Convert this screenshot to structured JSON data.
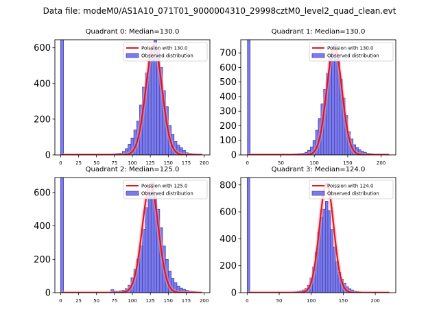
{
  "figure_title": "Data file: modeM0/AS1A10_071T01_9000004310_29998cztM0_level2_quad_clean.evt",
  "colors": {
    "bar_fill": "#7b7bef",
    "bar_edge": "#3a3a9a",
    "curve": "#e8121a",
    "curve_glow": "#f4a6b6"
  },
  "chart_data": [
    {
      "type": "bar",
      "title": "Quadrant 0: Median=130.0",
      "xlabel": "",
      "ylabel": "",
      "xlim": [
        -8,
        208
      ],
      "ylim": [
        0,
        645
      ],
      "xticks": [
        0,
        25,
        50,
        75,
        100,
        125,
        150,
        175,
        200
      ],
      "yticks": [
        0,
        200,
        400,
        600
      ],
      "bin_width": 4.1,
      "zero_bar": 645,
      "bins": [
        [
          70,
          3
        ],
        [
          74,
          5
        ],
        [
          78,
          8
        ],
        [
          82,
          10
        ],
        [
          86,
          20
        ],
        [
          90,
          35
        ],
        [
          94,
          60
        ],
        [
          98,
          95
        ],
        [
          102,
          140
        ],
        [
          106,
          190
        ],
        [
          110,
          280
        ],
        [
          114,
          380
        ],
        [
          118,
          460
        ],
        [
          122,
          550
        ],
        [
          126,
          600
        ],
        [
          130,
          640
        ],
        [
          134,
          590
        ],
        [
          138,
          490
        ],
        [
          142,
          360
        ],
        [
          146,
          270
        ],
        [
          150,
          165
        ],
        [
          154,
          115
        ],
        [
          158,
          75
        ],
        [
          162,
          55
        ],
        [
          166,
          40
        ],
        [
          170,
          25
        ],
        [
          174,
          12
        ],
        [
          178,
          8
        ],
        [
          182,
          5
        ],
        [
          186,
          3
        ],
        [
          190,
          2
        ]
      ],
      "curve": {
        "label": "Poission with 130.0",
        "mean": 130.0,
        "peak": 612,
        "x_start": 1,
        "x_end": 197
      },
      "legend": [
        "Poission with 130.0",
        "Observed distribution"
      ],
      "legend_loc": "upper right"
    },
    {
      "type": "bar",
      "title": "Quadrant 1: Median=130.0",
      "xlabel": "",
      "ylabel": "",
      "xlim": [
        -10,
        222
      ],
      "ylim": [
        0,
        790
      ],
      "xticks": [
        0,
        50,
        100,
        150,
        200
      ],
      "yticks": [
        0,
        100,
        200,
        300,
        400,
        500,
        600,
        700
      ],
      "bin_width": 4.1,
      "zero_bar": 790,
      "bins": [
        [
          66,
          3
        ],
        [
          70,
          5
        ],
        [
          74,
          7
        ],
        [
          78,
          9
        ],
        [
          82,
          12
        ],
        [
          86,
          18
        ],
        [
          90,
          32
        ],
        [
          94,
          55
        ],
        [
          98,
          100
        ],
        [
          102,
          170
        ],
        [
          106,
          250
        ],
        [
          110,
          350
        ],
        [
          114,
          450
        ],
        [
          118,
          560
        ],
        [
          122,
          650
        ],
        [
          126,
          710
        ],
        [
          130,
          760
        ],
        [
          134,
          650
        ],
        [
          138,
          520
        ],
        [
          142,
          390
        ],
        [
          146,
          270
        ],
        [
          150,
          160
        ],
        [
          154,
          110
        ],
        [
          158,
          70
        ],
        [
          162,
          50
        ],
        [
          166,
          35
        ],
        [
          170,
          25
        ],
        [
          174,
          18
        ],
        [
          178,
          12
        ],
        [
          182,
          8
        ],
        [
          186,
          5
        ],
        [
          190,
          3
        ],
        [
          194,
          2
        ]
      ],
      "curve": {
        "label": "Poission with 130.0",
        "mean": 130.0,
        "peak": 745,
        "x_start": 1,
        "x_end": 212
      },
      "legend": [
        "Poission with 130.0",
        "Observed distribution"
      ],
      "legend_loc": "upper right"
    },
    {
      "type": "bar",
      "title": "Quadrant 2: Median=125.0",
      "xlabel": "",
      "ylabel": "",
      "xlim": [
        -8,
        208
      ],
      "ylim": [
        0,
        690
      ],
      "xticks": [
        0,
        25,
        50,
        75,
        100,
        125,
        150,
        175,
        200
      ],
      "yticks": [
        0,
        200,
        400,
        600
      ],
      "bin_width": 4.1,
      "zero_bar": 690,
      "bins": [
        [
          70,
          18
        ],
        [
          74,
          10
        ],
        [
          78,
          8
        ],
        [
          82,
          12
        ],
        [
          86,
          15
        ],
        [
          90,
          25
        ],
        [
          94,
          45
        ],
        [
          98,
          90
        ],
        [
          102,
          140
        ],
        [
          106,
          200
        ],
        [
          110,
          280
        ],
        [
          114,
          380
        ],
        [
          118,
          510
        ],
        [
          122,
          610
        ],
        [
          126,
          660
        ],
        [
          130,
          600
        ],
        [
          134,
          500
        ],
        [
          138,
          390
        ],
        [
          142,
          280
        ],
        [
          146,
          200
        ],
        [
          150,
          130
        ],
        [
          154,
          85
        ],
        [
          158,
          60
        ],
        [
          162,
          40
        ],
        [
          166,
          28
        ],
        [
          170,
          20
        ],
        [
          174,
          14
        ],
        [
          178,
          10
        ],
        [
          182,
          8
        ],
        [
          186,
          5
        ],
        [
          190,
          3
        ]
      ],
      "curve": {
        "label": "Poission with 125.0",
        "mean": 125.0,
        "peak": 650,
        "x_start": 1,
        "x_end": 197
      },
      "legend": [
        "Poission with 125.0",
        "Observed distribution"
      ],
      "legend_loc": "upper right"
    },
    {
      "type": "bar",
      "title": "Quadrant 3: Median=124.0",
      "xlabel": "",
      "ylabel": "",
      "xlim": [
        -10,
        232
      ],
      "ylim": [
        0,
        855
      ],
      "xticks": [
        0,
        50,
        100,
        150,
        200
      ],
      "yticks": [
        0,
        200,
        400,
        600,
        800
      ],
      "bin_width": 4.1,
      "zero_bar": 855,
      "bins": [
        [
          70,
          4
        ],
        [
          74,
          6
        ],
        [
          78,
          10
        ],
        [
          82,
          14
        ],
        [
          86,
          20
        ],
        [
          90,
          32
        ],
        [
          94,
          55
        ],
        [
          98,
          110
        ],
        [
          102,
          190
        ],
        [
          106,
          300
        ],
        [
          110,
          450
        ],
        [
          114,
          560
        ],
        [
          118,
          620
        ],
        [
          122,
          680
        ],
        [
          126,
          610
        ],
        [
          130,
          470
        ],
        [
          134,
          340
        ],
        [
          138,
          230
        ],
        [
          142,
          150
        ],
        [
          146,
          100
        ],
        [
          150,
          70
        ],
        [
          154,
          45
        ],
        [
          158,
          30
        ],
        [
          162,
          20
        ],
        [
          166,
          12
        ],
        [
          170,
          8
        ],
        [
          174,
          5
        ],
        [
          178,
          3
        ]
      ],
      "curve": {
        "label": "Poission with 124.0",
        "mean": 124.0,
        "peak": 810,
        "x_start": 1,
        "x_end": 222
      },
      "legend": [
        "Poission with 124.0",
        "Observed distribution"
      ],
      "legend_loc": "upper right"
    }
  ]
}
